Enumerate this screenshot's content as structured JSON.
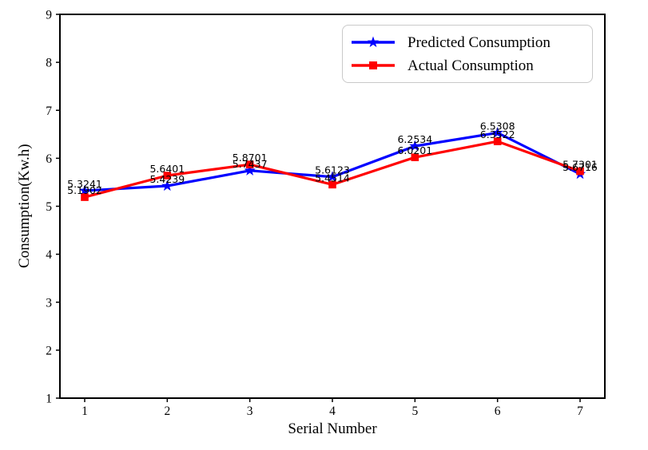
{
  "chart_data": {
    "type": "line",
    "title": "",
    "xlabel": "Serial Number",
    "ylabel": "Consumption(Kw.h)",
    "x": [
      1,
      2,
      3,
      4,
      5,
      6,
      7
    ],
    "xticks": [
      1,
      2,
      3,
      4,
      5,
      6,
      7
    ],
    "yticks": [
      1,
      2,
      3,
      4,
      5,
      6,
      7,
      8,
      9
    ],
    "xlim": [
      0.7,
      7.3
    ],
    "ylim": [
      1,
      9
    ],
    "grid": false,
    "legend_position": "upper-right",
    "point_labels_visible": true,
    "axis_color": "#000000",
    "label_color": "#000000",
    "series": [
      {
        "name": "Predicted Consumption",
        "color": "#0000ff",
        "marker": "star",
        "values": [
          5.3241,
          5.4239,
          5.7437,
          5.6123,
          6.2534,
          6.5308,
          5.6716
        ]
      },
      {
        "name": "Actual Consumption",
        "color": "#ff0000",
        "marker": "square",
        "values": [
          5.1902,
          5.6401,
          5.8701,
          5.4514,
          6.0201,
          6.3522,
          5.7301
        ]
      }
    ]
  }
}
